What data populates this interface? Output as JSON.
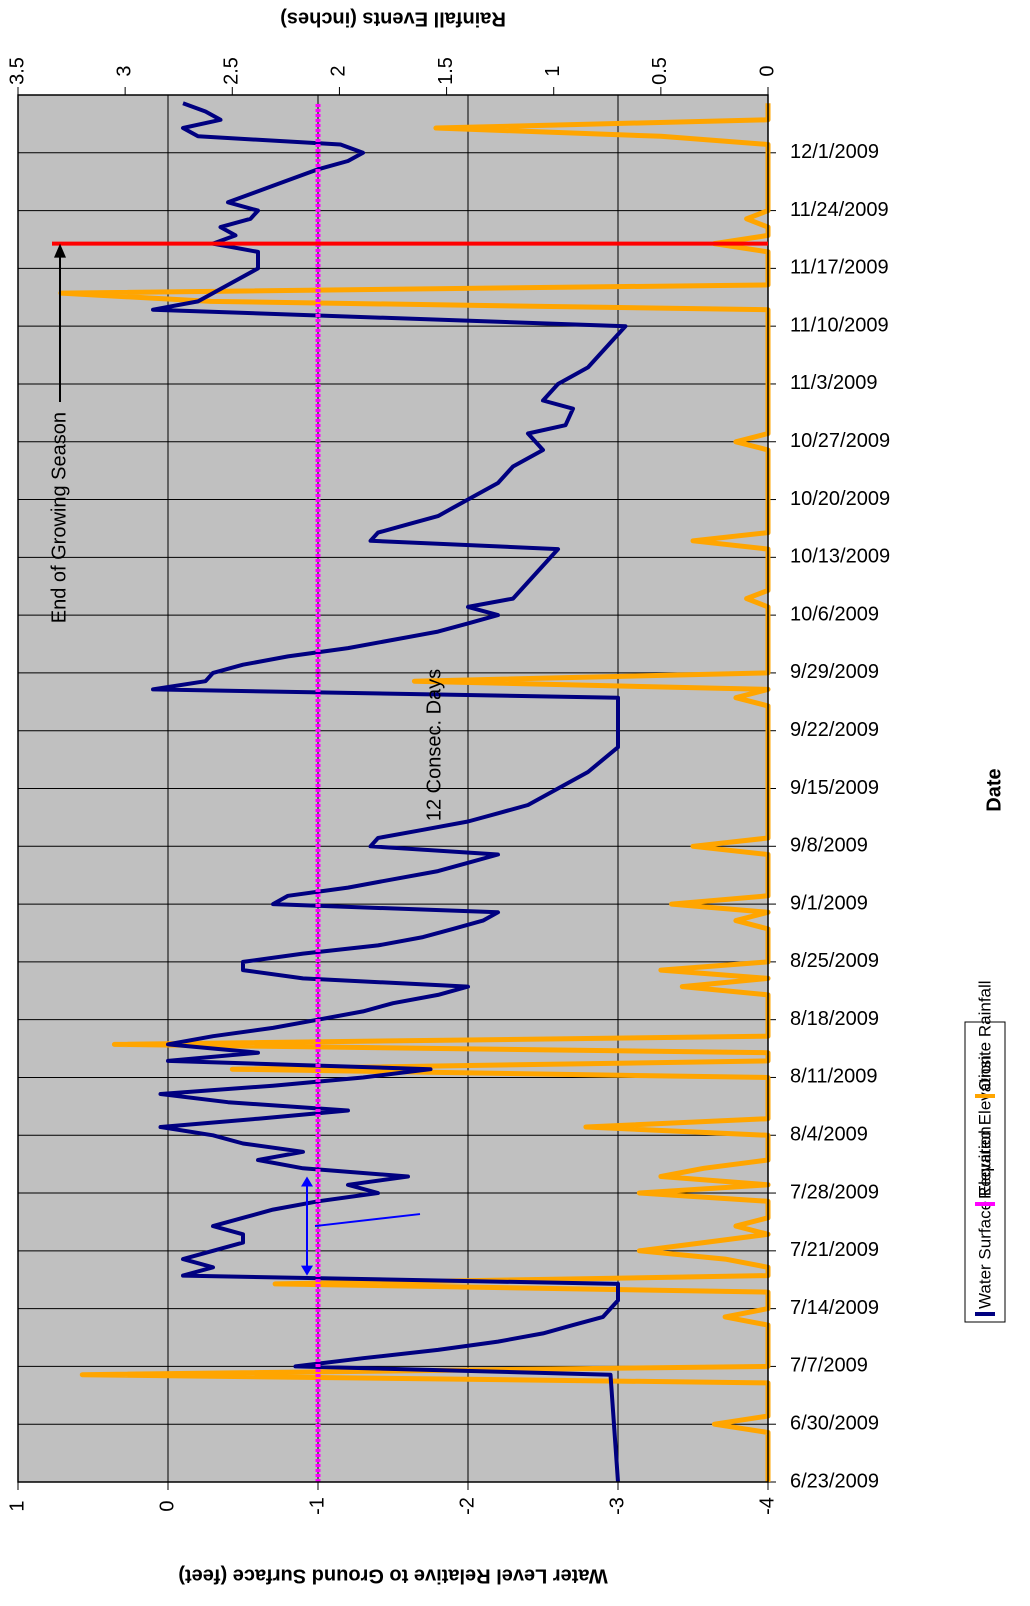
{
  "chart_data": {
    "type": "line",
    "xlabel": "Date",
    "ylabel": "Water Level Relative to Ground Surface (feet)",
    "y2label": "Rainfall Events (inches)",
    "xlim": [
      "2009-06-23",
      "2009-12-08"
    ],
    "xticks": [
      {
        "value": "2009-06-23",
        "label": "6/23/2009"
      },
      {
        "value": "2009-06-30",
        "label": "6/30/2009"
      },
      {
        "value": "2009-07-07",
        "label": "7/7/2009"
      },
      {
        "value": "2009-07-14",
        "label": "7/14/2009"
      },
      {
        "value": "2009-07-21",
        "label": "7/21/2009"
      },
      {
        "value": "2009-07-28",
        "label": "7/28/2009"
      },
      {
        "value": "2009-08-04",
        "label": "8/4/2009"
      },
      {
        "value": "2009-08-11",
        "label": "8/11/2009"
      },
      {
        "value": "2009-08-18",
        "label": "8/18/2009"
      },
      {
        "value": "2009-08-25",
        "label": "8/25/2009"
      },
      {
        "value": "2009-09-01",
        "label": "9/1/2009"
      },
      {
        "value": "2009-09-08",
        "label": "9/8/2009"
      },
      {
        "value": "2009-09-15",
        "label": "9/15/2009"
      },
      {
        "value": "2009-09-22",
        "label": "9/22/2009"
      },
      {
        "value": "2009-09-29",
        "label": "9/29/2009"
      },
      {
        "value": "2009-10-06",
        "label": "10/6/2009"
      },
      {
        "value": "2009-10-13",
        "label": "10/13/2009"
      },
      {
        "value": "2009-10-20",
        "label": "10/20/2009"
      },
      {
        "value": "2009-10-27",
        "label": "10/27/2009"
      },
      {
        "value": "2009-11-03",
        "label": "11/3/2009"
      },
      {
        "value": "2009-11-10",
        "label": "11/10/2009"
      },
      {
        "value": "2009-11-17",
        "label": "11/17/2009"
      },
      {
        "value": "2009-11-24",
        "label": "11/24/2009"
      },
      {
        "value": "2009-12-01",
        "label": "12/1/2009"
      }
    ],
    "ylim": [
      -4,
      1
    ],
    "yticks": [
      -4,
      -3,
      -2,
      -1,
      0,
      1
    ],
    "y2lim": [
      0,
      3.5
    ],
    "y2ticks": [
      0,
      0.5,
      1,
      1.5,
      2,
      2.5,
      3,
      3.5
    ],
    "grid": true,
    "background": "#c0c0c0",
    "legend": "right",
    "series": [
      {
        "name": "Water Surface Elevation",
        "color": "#000080",
        "x": [
          "2009-06-23",
          "2009-07-06",
          "2009-07-07",
          "2009-07-08",
          "2009-07-09",
          "2009-07-10",
          "2009-07-11",
          "2009-07-12",
          "2009-07-13",
          "2009-07-15",
          "2009-07-17",
          "2009-07-18",
          "2009-07-19",
          "2009-07-20",
          "2009-07-21",
          "2009-07-22",
          "2009-07-23",
          "2009-07-24",
          "2009-07-25",
          "2009-07-26",
          "2009-07-27",
          "2009-07-28",
          "2009-07-29",
          "2009-07-30",
          "2009-07-31",
          "2009-08-01",
          "2009-08-02",
          "2009-08-03",
          "2009-08-04",
          "2009-08-05",
          "2009-08-06",
          "2009-08-07",
          "2009-08-08",
          "2009-08-09",
          "2009-08-10",
          "2009-08-11",
          "2009-08-12",
          "2009-08-13",
          "2009-08-14",
          "2009-08-15",
          "2009-08-16",
          "2009-08-17",
          "2009-08-18",
          "2009-08-19",
          "2009-08-20",
          "2009-08-21",
          "2009-08-22",
          "2009-08-23",
          "2009-08-24",
          "2009-08-25",
          "2009-08-26",
          "2009-08-27",
          "2009-08-28",
          "2009-08-29",
          "2009-08-30",
          "2009-08-31",
          "2009-09-01",
          "2009-09-02",
          "2009-09-03",
          "2009-09-04",
          "2009-09-05",
          "2009-09-06",
          "2009-09-07",
          "2009-09-08",
          "2009-09-09",
          "2009-09-10",
          "2009-09-11",
          "2009-09-12",
          "2009-09-13",
          "2009-09-15",
          "2009-09-17",
          "2009-09-20",
          "2009-09-26",
          "2009-09-27",
          "2009-09-28",
          "2009-09-29",
          "2009-09-30",
          "2009-10-01",
          "2009-10-02",
          "2009-10-03",
          "2009-10-04",
          "2009-10-05",
          "2009-10-06",
          "2009-10-07",
          "2009-10-08",
          "2009-10-10",
          "2009-10-12",
          "2009-10-14",
          "2009-10-15",
          "2009-10-16",
          "2009-10-17",
          "2009-10-18",
          "2009-10-19",
          "2009-10-20",
          "2009-10-22",
          "2009-10-24",
          "2009-10-26",
          "2009-10-28",
          "2009-10-29",
          "2009-10-31",
          "2009-11-01",
          "2009-11-03",
          "2009-11-05",
          "2009-11-07",
          "2009-11-09",
          "2009-11-10",
          "2009-11-12",
          "2009-11-13",
          "2009-11-15",
          "2009-11-17",
          "2009-11-19",
          "2009-11-20",
          "2009-11-21",
          "2009-11-22",
          "2009-11-23",
          "2009-11-24",
          "2009-11-25",
          "2009-11-27",
          "2009-11-29",
          "2009-11-30",
          "2009-12-01",
          "2009-12-02",
          "2009-12-03",
          "2009-12-04",
          "2009-12-05",
          "2009-12-06",
          "2009-12-07"
        ],
        "values": [
          -3.0,
          -2.95,
          -0.85,
          -1.3,
          -1.8,
          -2.2,
          -2.5,
          -2.7,
          -2.9,
          -3.0,
          -3.0,
          -0.1,
          -0.3,
          -0.1,
          -0.3,
          -0.5,
          -0.5,
          -0.3,
          -0.5,
          -0.7,
          -1.0,
          -1.4,
          -1.2,
          -1.6,
          -0.9,
          -0.6,
          -0.9,
          -0.5,
          -0.3,
          0.05,
          -0.6,
          -1.2,
          -0.4,
          0.05,
          -0.7,
          -1.3,
          -1.75,
          0.0,
          -0.6,
          0.0,
          -0.3,
          -0.7,
          -1.0,
          -1.3,
          -1.5,
          -1.8,
          -2.0,
          -0.9,
          -0.5,
          -0.5,
          -0.9,
          -1.4,
          -1.7,
          -1.9,
          -2.1,
          -2.2,
          -0.7,
          -0.8,
          -1.2,
          -1.5,
          -1.8,
          -2.0,
          -2.2,
          -1.35,
          -1.4,
          -1.7,
          -2.0,
          -2.2,
          -2.4,
          -2.6,
          -2.8,
          -3.0,
          -3.0,
          0.1,
          -0.25,
          -0.3,
          -0.5,
          -0.8,
          -1.2,
          -1.5,
          -1.8,
          -2.0,
          -2.2,
          -2.0,
          -2.3,
          -2.4,
          -2.5,
          -2.6,
          -1.35,
          -1.4,
          -1.6,
          -1.8,
          -1.9,
          -2.0,
          -2.2,
          -2.3,
          -2.5,
          -2.4,
          -2.65,
          -2.7,
          -2.5,
          -2.6,
          -2.8,
          -2.9,
          -3.0,
          -3.05,
          0.1,
          -0.2,
          -0.4,
          -0.6,
          -0.6,
          -0.3,
          -0.45,
          -0.35,
          -0.55,
          -0.6,
          -0.4,
          -0.7,
          -1.0,
          -1.2,
          -1.3,
          -1.15,
          -0.2,
          -0.1,
          -0.35,
          -0.25,
          -0.1
        ]
      },
      {
        "name": "Required Elevation",
        "color": "#ff00ff",
        "dotted": true,
        "x": [
          "2009-06-23",
          "2009-12-07"
        ],
        "values": [
          -1,
          -1
        ]
      },
      {
        "name": "Onsite Rainfall",
        "color": "#ffa500",
        "axis": "y2",
        "x": [
          "2009-06-23",
          "2009-06-29",
          "2009-06-30",
          "2009-07-01",
          "2009-07-05",
          "2009-07-06",
          "2009-07-07",
          "2009-07-12",
          "2009-07-13",
          "2009-07-14",
          "2009-07-16",
          "2009-07-17",
          "2009-07-18",
          "2009-07-19",
          "2009-07-20",
          "2009-07-21",
          "2009-07-22",
          "2009-07-23",
          "2009-07-24",
          "2009-07-25",
          "2009-07-27",
          "2009-07-28",
          "2009-07-29",
          "2009-07-30",
          "2009-07-31",
          "2009-08-01",
          "2009-08-04",
          "2009-08-05",
          "2009-08-06",
          "2009-08-11",
          "2009-08-12",
          "2009-08-13",
          "2009-08-14",
          "2009-08-15",
          "2009-08-16",
          "2009-08-21",
          "2009-08-22",
          "2009-08-23",
          "2009-08-24",
          "2009-08-25",
          "2009-08-29",
          "2009-08-30",
          "2009-08-31",
          "2009-09-01",
          "2009-09-02",
          "2009-09-07",
          "2009-09-08",
          "2009-09-09",
          "2009-09-25",
          "2009-09-26",
          "2009-09-27",
          "2009-09-28",
          "2009-09-29",
          "2009-10-07",
          "2009-10-08",
          "2009-10-09",
          "2009-10-14",
          "2009-10-15",
          "2009-10-16",
          "2009-10-26",
          "2009-10-27",
          "2009-10-28",
          "2009-11-12",
          "2009-11-13",
          "2009-11-14",
          "2009-11-15",
          "2009-11-19",
          "2009-11-20",
          "2009-11-21",
          "2009-11-22",
          "2009-11-23",
          "2009-11-24",
          "2009-12-02",
          "2009-12-03",
          "2009-12-04",
          "2009-12-05",
          "2009-12-07"
        ],
        "values": [
          0,
          0,
          0.25,
          0,
          0,
          3.2,
          0,
          0,
          0.2,
          0,
          0,
          2.3,
          0,
          0,
          0.2,
          0.6,
          0.3,
          0,
          0.15,
          0,
          0,
          0.6,
          0,
          0.5,
          0.3,
          0,
          0,
          0.85,
          0,
          0,
          2.5,
          0,
          0,
          3.05,
          0,
          0,
          0.4,
          0,
          0.5,
          0,
          0,
          0.15,
          0,
          0.45,
          0,
          0,
          0.35,
          0,
          0,
          0.15,
          0,
          1.65,
          0,
          0,
          0.1,
          0,
          0,
          0.35,
          0,
          0,
          0.15,
          0,
          0,
          2.6,
          3.3,
          0,
          0,
          0.25,
          0,
          0,
          0.1,
          0,
          0,
          0.5,
          1.55,
          0,
          0
        ]
      }
    ],
    "vline": {
      "x": "2009-11-20",
      "color": "#ff0000"
    },
    "annotations": [
      {
        "text": "End of Growing Season"
      },
      {
        "text": "12 Consec. Days",
        "color": "#0000ff",
        "x": [
          "2009-07-18",
          "2009-07-30"
        ]
      }
    ]
  }
}
